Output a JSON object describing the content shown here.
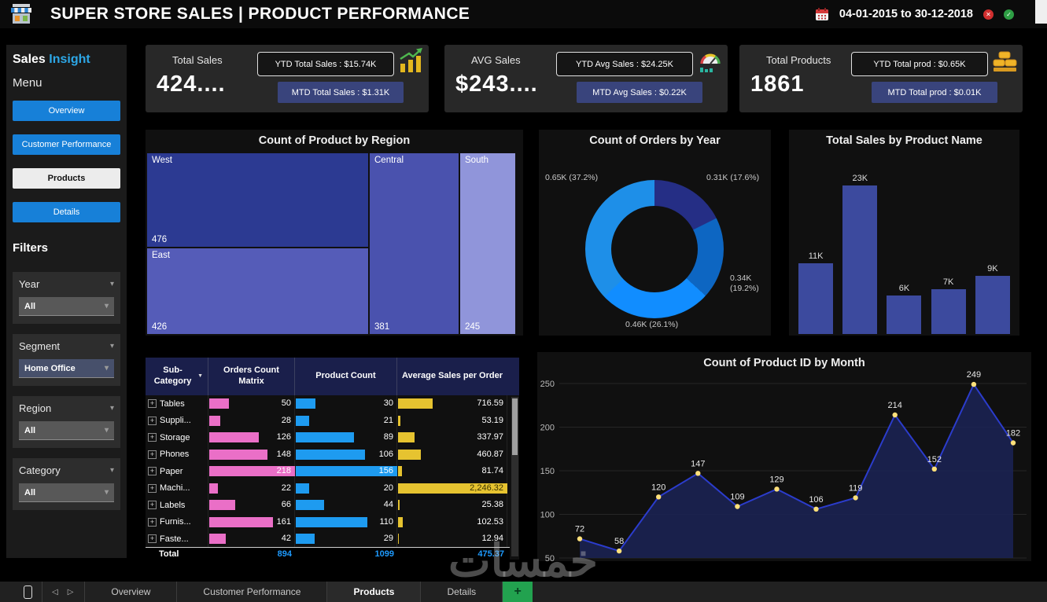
{
  "header": {
    "title": "SUPER STORE SALES | PRODUCT PERFORMANCE",
    "date_range": "04-01-2015 to 30-12-2018"
  },
  "sidebar": {
    "brand_part1": "Sales",
    "brand_part2": "Insight",
    "menu_label": "Menu",
    "menu_items": [
      {
        "label": "Overview",
        "active": false
      },
      {
        "label": "Customer Performance",
        "active": false
      },
      {
        "label": "Products",
        "active": true
      },
      {
        "label": "Details",
        "active": false
      }
    ],
    "filters_label": "Filters",
    "filters": [
      {
        "label": "Year",
        "value": "All"
      },
      {
        "label": "Segment",
        "value": "Home Office"
      },
      {
        "label": "Region",
        "value": "All"
      },
      {
        "label": "Category",
        "value": "All"
      }
    ]
  },
  "kpis": [
    {
      "label": "Total Sales",
      "value": "424....",
      "ytd_label": "YTD Total Sales : $15.74K",
      "mtd_label": "MTD Total Sales : $1.31K",
      "icon": "trend-coins-icon"
    },
    {
      "label": "AVG Sales",
      "value": "$243....",
      "ytd_label": "YTD Avg Sales : $24.25K",
      "mtd_label": "MTD Avg Sales : $0.22K",
      "icon": "gauge-icon"
    },
    {
      "label": "Total Products",
      "value": "1861",
      "ytd_label": "YTD Total prod : $0.65K",
      "mtd_label": "MTD Total prod : $0.01K",
      "icon": "gold-stack-icon"
    }
  ],
  "chart_data": [
    {
      "type": "treemap",
      "title": "Count of Product by Region",
      "items": [
        {
          "label": "West",
          "value": 476,
          "color": "#2c3a92"
        },
        {
          "label": "East",
          "value": 426,
          "color": "#555cb8"
        },
        {
          "label": "Central",
          "value": 381,
          "color": "#4a52ae"
        },
        {
          "label": "South",
          "value": 245,
          "color": "#9095da"
        }
      ]
    },
    {
      "type": "pie",
      "donut": true,
      "title": "Count of Orders by Year",
      "slices": [
        {
          "label": "0.31K (17.6%)",
          "value": 0.31,
          "pct": 17.6,
          "color": "#252e85"
        },
        {
          "label": "0.34K (19.2%)",
          "value": 0.34,
          "pct": 19.2,
          "color": "#0d66c2"
        },
        {
          "label": "0.46K (26.1%)",
          "value": 0.46,
          "pct": 26.1,
          "color": "#118dff"
        },
        {
          "label": "0.65K (37.2%)",
          "value": 0.65,
          "pct": 37.2,
          "color": "#1e8fe8"
        }
      ]
    },
    {
      "type": "bar",
      "title": "Total Sales by Product Name",
      "values": [
        11,
        23,
        6,
        7,
        9
      ],
      "labels": [
        "11K",
        "23K",
        "6K",
        "7K",
        "9K"
      ],
      "ylim": [
        0,
        25
      ],
      "bar_color": "#3c4a9e"
    },
    {
      "type": "table",
      "columns": [
        "Sub-Category",
        "Orders Count Matrix",
        "Product Count",
        "Average Sales per Order"
      ],
      "rows": [
        {
          "name": "Tables",
          "orders": 50,
          "products": 30,
          "avg": "716.59",
          "avg_num": 716.59
        },
        {
          "name": "Suppli...",
          "orders": 28,
          "products": 21,
          "avg": "53.19",
          "avg_num": 53.19
        },
        {
          "name": "Storage",
          "orders": 126,
          "products": 89,
          "avg": "337.97",
          "avg_num": 337.97
        },
        {
          "name": "Phones",
          "orders": 148,
          "products": 106,
          "avg": "460.87",
          "avg_num": 460.87
        },
        {
          "name": "Paper",
          "orders": 218,
          "products": 156,
          "avg": "81.74",
          "avg_num": 81.74
        },
        {
          "name": "Machi...",
          "orders": 22,
          "products": 20,
          "avg": "2,246.32",
          "avg_num": 2246.32
        },
        {
          "name": "Labels",
          "orders": 66,
          "products": 44,
          "avg": "25.38",
          "avg_num": 25.38
        },
        {
          "name": "Furnis...",
          "orders": 161,
          "products": 110,
          "avg": "102.53",
          "avg_num": 102.53
        },
        {
          "name": "Faste...",
          "orders": 42,
          "products": 29,
          "avg": "12.94",
          "avg_num": 12.94
        }
      ],
      "total": {
        "name": "Total",
        "orders": 894,
        "products": 1099,
        "avg": "475.37"
      },
      "max": {
        "orders": 218,
        "products": 156,
        "avg": 2246.32
      },
      "bar_colors": {
        "orders": "#ea6fc7",
        "products": "#1e9bf0",
        "avg": "#e6c330"
      }
    },
    {
      "type": "area",
      "title": "Count of Product ID by Month",
      "values": [
        72,
        58,
        120,
        147,
        109,
        129,
        106,
        119,
        214,
        152,
        249,
        182
      ],
      "yticks": [
        50,
        100,
        150,
        200,
        250
      ],
      "ylim": [
        50,
        250
      ],
      "line_color": "#2b3ccc",
      "fill_color": "#1b2356",
      "dot_color": "#ffe07a"
    }
  ],
  "bottom_bar": {
    "tabs": [
      {
        "label": "Overview",
        "active": false
      },
      {
        "label": "Customer Performance",
        "active": false
      },
      {
        "label": "Products",
        "active": true
      },
      {
        "label": "Details",
        "active": false
      }
    ],
    "add_tab": "+"
  },
  "watermark": "خمسات"
}
